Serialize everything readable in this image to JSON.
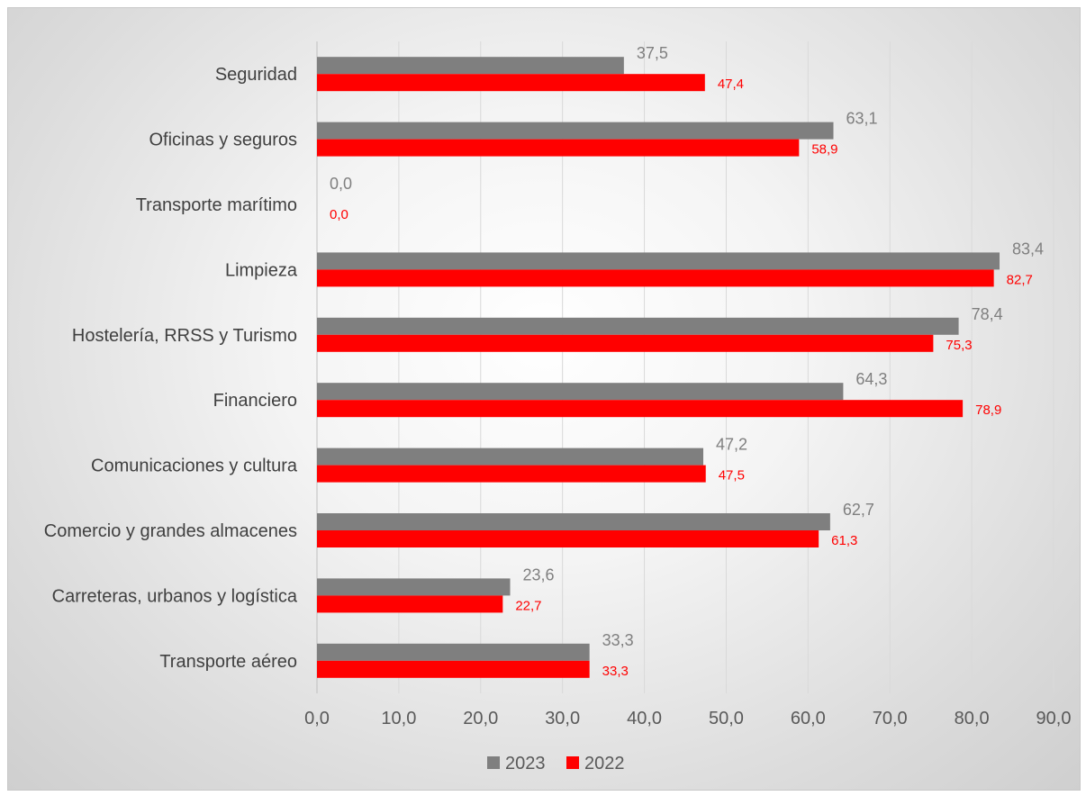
{
  "chart_data": {
    "type": "bar",
    "orientation": "horizontal",
    "categories": [
      "Seguridad",
      "Oficinas y seguros",
      "Transporte marítimo",
      "Limpieza",
      "Hostelería, RRSS y Turismo",
      "Financiero",
      "Comunicaciones y cultura",
      "Comercio y grandes almacenes",
      "Carreteras, urbanos y logística",
      "Transporte aéreo"
    ],
    "series": [
      {
        "name": "2023",
        "color": "#7f7f7f",
        "values": [
          37.5,
          63.1,
          0.0,
          83.4,
          78.4,
          64.3,
          47.2,
          62.7,
          23.6,
          33.3
        ],
        "labels": [
          "37,5",
          "63,1",
          "0,0",
          "83,4",
          "78,4",
          "64,3",
          "47,2",
          "62,7",
          "23,6",
          "33,3"
        ]
      },
      {
        "name": "2022",
        "color": "#ff0000",
        "values": [
          47.4,
          58.9,
          0.0,
          82.7,
          75.3,
          78.9,
          47.5,
          61.3,
          22.7,
          33.3
        ],
        "labels": [
          "47,4",
          "58,9",
          "0,0",
          "82,7",
          "75,3",
          "78,9",
          "47,5",
          "61,3",
          "22,7",
          "33,3"
        ]
      }
    ],
    "xlim": [
      0,
      90
    ],
    "xticks": [
      "0,0",
      "10,0",
      "20,0",
      "30,0",
      "40,0",
      "50,0",
      "60,0",
      "70,0",
      "80,0",
      "90,0"
    ],
    "grid": true,
    "legend": "bottom",
    "title": "",
    "xlabel": "",
    "ylabel": ""
  }
}
